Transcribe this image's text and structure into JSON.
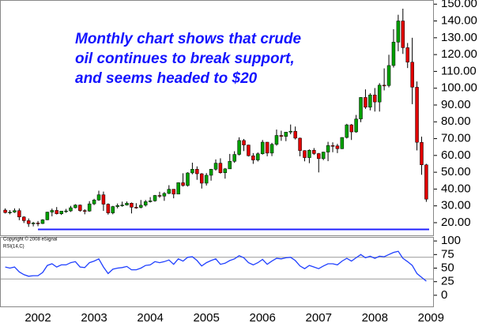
{
  "chart_data": [
    {
      "type": "candlestick",
      "annotation": [
        "Monthly chart shows that crude",
        "oil continues to break support,",
        "and seems headed to $20"
      ],
      "up_color": "#00a000",
      "down_color": "#e00000",
      "support_line": 16,
      "support_color": "#2020ff",
      "categories": [
        null,
        null,
        null,
        null,
        null,
        null,
        null,
        "2002",
        null,
        null,
        null,
        null,
        null,
        null,
        null,
        null,
        null,
        null,
        null,
        "2003",
        null,
        null,
        null,
        null,
        null,
        null,
        null,
        null,
        null,
        null,
        null,
        "2004",
        null,
        null,
        null,
        null,
        null,
        null,
        null,
        null,
        null,
        null,
        null,
        "2005",
        null,
        null,
        null,
        null,
        null,
        null,
        null,
        null,
        null,
        null,
        null,
        "2006",
        null,
        null,
        null,
        null,
        null,
        null,
        null,
        null,
        null,
        null,
        null,
        "2007",
        null,
        null,
        null,
        null,
        null,
        null,
        null,
        null,
        null,
        null,
        null,
        "2008",
        null,
        null,
        null,
        null,
        null,
        null,
        null,
        null,
        null,
        null,
        null,
        "2009"
      ],
      "open": [
        27.5,
        26,
        26.3,
        27.2,
        23.4,
        21.2,
        19.4,
        19.8,
        19.5,
        21.7,
        26.3,
        27.3,
        25.3,
        26.9,
        27,
        28.9,
        30.5,
        27.2,
        26.9,
        31.2,
        33.5,
        36.6,
        31,
        25.8,
        29.6,
        30.2,
        30.5,
        31.6,
        29.2,
        29.1,
        30.4,
        32.5,
        33,
        36.2,
        35.8,
        37.4,
        39.9,
        37,
        43.8,
        42.1,
        49.6,
        51.8,
        49.1,
        43.5,
        48.2,
        51.8,
        55.4,
        49.7,
        52,
        56.5,
        60.6,
        68.9,
        66.2,
        59.8,
        57.3,
        61,
        67.9,
        61.4,
        66.6,
        71.9,
        71.3,
        73.9,
        74.4,
        70.3,
        62.9,
        58.7,
        63.1,
        61.1,
        58.1,
        62,
        65.9,
        65.7,
        64,
        70.7,
        78.2,
        74,
        81.7,
        94.5,
        88.7,
        96,
        91.8,
        101.8,
        101.6,
        113.5,
        127.4,
        140,
        124.1,
        115.5,
        100.6,
        67.8,
        54.4,
        null
      ],
      "high": [
        28.5,
        27.5,
        28.5,
        28.5,
        23.8,
        22.5,
        20.5,
        21,
        22.1,
        26.5,
        28.4,
        29.3,
        27,
        28.2,
        30,
        31,
        30.8,
        28,
        32.8,
        34.2,
        39,
        38.5,
        31.5,
        30,
        31.4,
        32.5,
        32.6,
        32,
        31.6,
        33.5,
        33.5,
        35.2,
        36.5,
        38.4,
        38.2,
        42.3,
        40,
        44,
        49.4,
        50,
        55.7,
        53.5,
        49.5,
        49.5,
        52,
        57.6,
        58.3,
        52.5,
        60.9,
        62.5,
        70.8,
        69.8,
        66.4,
        61.4,
        61.8,
        69.2,
        68,
        67.5,
        75.4,
        74.7,
        74,
        78.4,
        77.2,
        70.6,
        63.1,
        63.6,
        64.4,
        61.5,
        62.2,
        68.1,
        67.8,
        66.9,
        70.8,
        78.8,
        78.7,
        84.1,
        94.7,
        99.3,
        97,
        100.1,
        103,
        111.8,
        119.9,
        135.1,
        143.7,
        147.3,
        126.9,
        130,
        104,
        71.2,
        55,
        null
      ],
      "low": [
        25.5,
        25,
        25.8,
        21.5,
        19.8,
        17.5,
        17.8,
        17.9,
        19.2,
        21.5,
        23.8,
        24.9,
        24.6,
        25.9,
        26.4,
        28.5,
        26.5,
        25,
        26.5,
        30.5,
        33,
        27,
        24.8,
        25,
        28.5,
        29.5,
        30.2,
        25.5,
        28.3,
        28.5,
        29.6,
        32,
        32.5,
        34.8,
        33,
        37,
        34.5,
        37.5,
        41.5,
        41.5,
        48.8,
        45.5,
        40.3,
        42.1,
        45,
        51,
        49.2,
        46.2,
        52,
        55.6,
        60,
        62.6,
        59.4,
        55,
        56.4,
        60.5,
        59.5,
        59.6,
        65.8,
        68.7,
        68.5,
        72.6,
        69.5,
        59.5,
        56.5,
        55.4,
        60.3,
        49.9,
        57.2,
        56.6,
        61.9,
        61.4,
        63.8,
        70.1,
        69.2,
        73.5,
        79.8,
        87.7,
        86.8,
        86.1,
        86.1,
        98.7,
        100.5,
        112.3,
        122,
        120.4,
        112,
        90.5,
        63,
        48.5,
        32.4,
        null
      ],
      "close": [
        26,
        26.3,
        27.2,
        23.4,
        21.2,
        19.4,
        19.8,
        19.5,
        21.7,
        26.3,
        27.3,
        25.3,
        26.9,
        27,
        28.9,
        30.5,
        27.2,
        26.9,
        31.2,
        33.5,
        36.6,
        31,
        25.8,
        29.6,
        30.2,
        30.5,
        31.6,
        29.2,
        29.1,
        30.4,
        32.5,
        33,
        36.2,
        35.8,
        37.4,
        39.9,
        37,
        43.8,
        42.1,
        49.6,
        51.8,
        49.1,
        43.5,
        48.2,
        51.8,
        55.4,
        49.7,
        52,
        56.5,
        60.6,
        68.9,
        66.2,
        59.8,
        57.3,
        61,
        67.9,
        61.4,
        66.6,
        71.9,
        71.3,
        73.9,
        74.4,
        70.3,
        62.9,
        58.7,
        63.1,
        61.1,
        58.1,
        62,
        65.9,
        65.7,
        64,
        70.7,
        78.2,
        74,
        81.7,
        94.5,
        88.7,
        96,
        91.8,
        101.8,
        101.6,
        113.5,
        127.4,
        140,
        124.1,
        115.5,
        100.6,
        67.8,
        54.4,
        34,
        null
      ],
      "ylim": [
        12,
        152
      ],
      "yticks": [
        {
          "value": 20,
          "label": "20.00"
        },
        {
          "value": 30,
          "label": "30.00"
        },
        {
          "value": 40,
          "label": "40.00"
        },
        {
          "value": 50,
          "label": "50.00"
        },
        {
          "value": 60,
          "label": "60.00"
        },
        {
          "value": 70,
          "label": "70.00"
        },
        {
          "value": 80,
          "label": "80.00"
        },
        {
          "value": 90,
          "label": "90.00"
        },
        {
          "value": 100,
          "label": "100.00"
        },
        {
          "value": 110,
          "label": "110.00"
        },
        {
          "value": 120,
          "label": "120.00"
        },
        {
          "value": 130,
          "label": "130.00"
        },
        {
          "value": 140,
          "label": "140.00"
        },
        {
          "value": 150,
          "label": "150.00"
        }
      ]
    },
    {
      "type": "line",
      "copyright": "Copyright © 2008 eSignal",
      "title": "RSI(14,C)",
      "color": "#2040ff",
      "values": [
        52,
        50,
        52,
        43,
        38,
        35,
        36,
        36,
        42,
        55,
        58,
        52,
        56,
        56,
        60,
        62,
        52,
        51,
        60,
        63,
        67,
        52,
        40,
        48,
        50,
        51,
        53,
        47,
        47,
        50,
        55,
        56,
        62,
        60,
        62,
        65,
        57,
        67,
        63,
        70,
        71,
        64,
        54,
        60,
        64,
        67,
        57,
        59,
        64,
        67,
        73,
        69,
        60,
        56,
        60,
        66,
        57,
        63,
        68,
        67,
        69,
        70,
        64,
        54,
        49,
        55,
        52,
        49,
        54,
        58,
        58,
        56,
        63,
        68,
        63,
        69,
        75,
        69,
        72,
        68,
        72,
        71,
        75,
        79,
        81,
        68,
        62,
        55,
        40,
        33,
        26,
        null
      ],
      "levels": [
        70,
        30
      ],
      "ylim": [
        -22,
        106
      ],
      "yticks": [
        0,
        25,
        50,
        75,
        100
      ]
    }
  ]
}
